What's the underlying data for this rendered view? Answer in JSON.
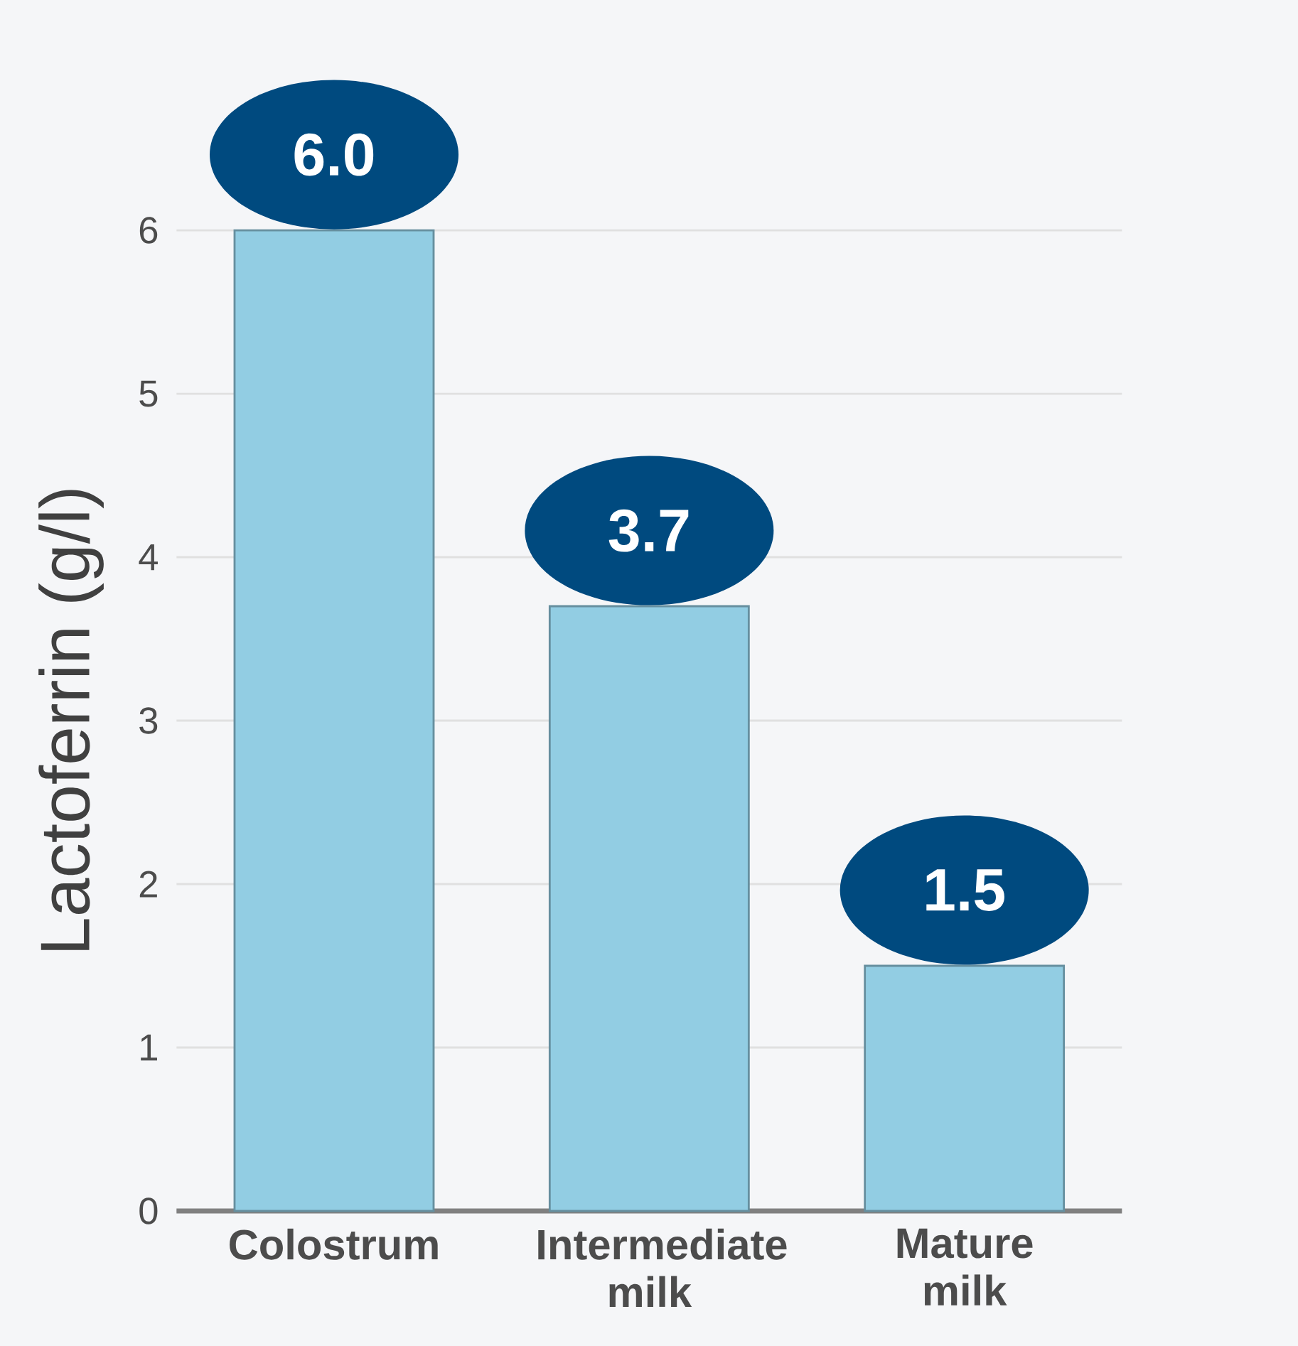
{
  "chart_data": {
    "type": "bar",
    "ylabel": "Lactoferrin (g/l)",
    "categories": [
      "Colostrum",
      "Intermediate milk",
      "Mature milk"
    ],
    "values": [
      6.0,
      3.7,
      1.5
    ],
    "value_labels": [
      "6.0",
      "3.7",
      "1.5"
    ],
    "color": "#92cde3",
    "ylim": [
      0,
      6
    ],
    "yticks": [
      0,
      1,
      2,
      3,
      4,
      5,
      6
    ],
    "grid": "y"
  }
}
